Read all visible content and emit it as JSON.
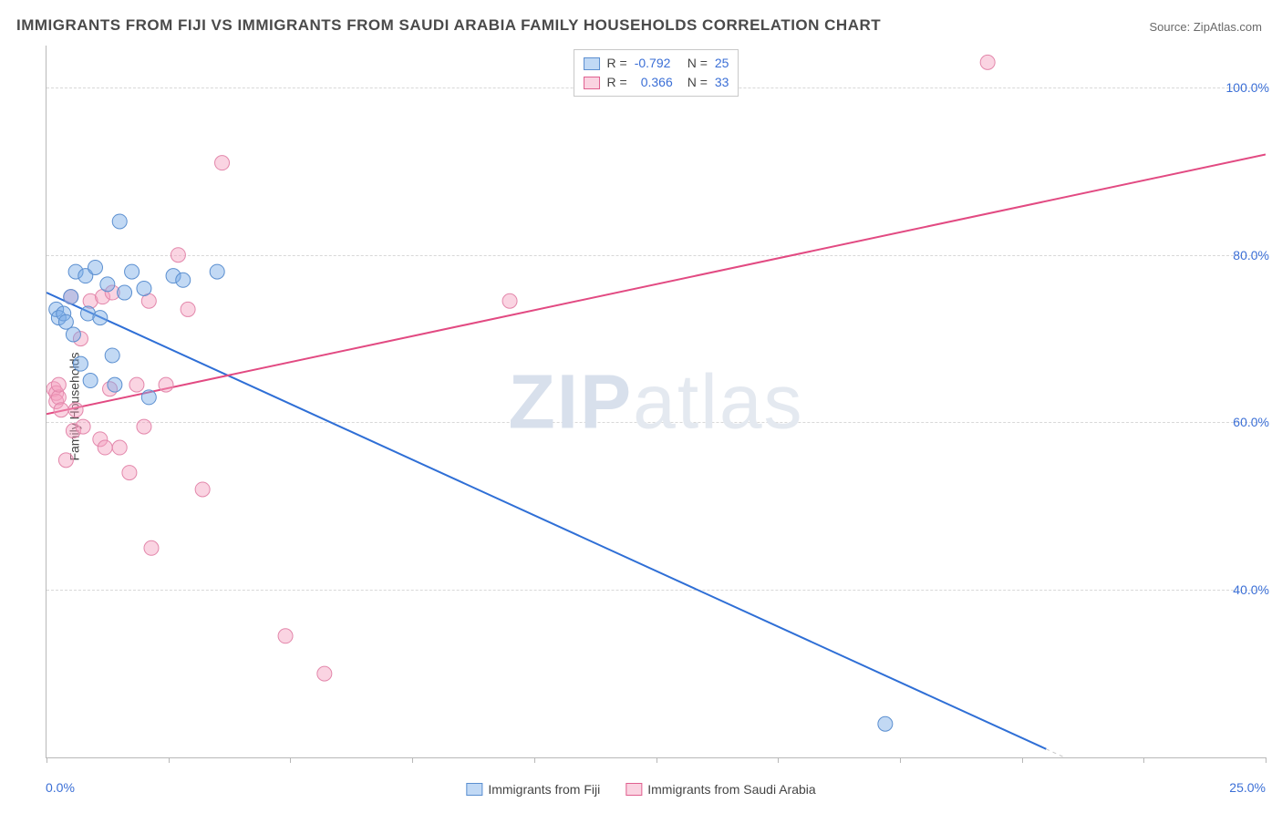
{
  "title": "IMMIGRANTS FROM FIJI VS IMMIGRANTS FROM SAUDI ARABIA FAMILY HOUSEHOLDS CORRELATION CHART",
  "source_label": "Source: ",
  "source_value": "ZipAtlas.com",
  "ylabel": "Family Households",
  "watermark_bold": "ZIP",
  "watermark_rest": "atlas",
  "colors": {
    "blue_line": "#2f6fd6",
    "pink_line": "#e24a82",
    "blue_fill": "rgba(120,170,230,0.45)",
    "blue_stroke": "#5b8fd0",
    "pink_fill": "rgba(245,160,190,0.45)",
    "pink_stroke": "#e387ab",
    "axis_text": "#3b6fd6",
    "grid": "#d8d8d8"
  },
  "legend_top": {
    "series": [
      {
        "swatch": "blue",
        "r_label": "R =",
        "r_value": "-0.792",
        "n_label": "N =",
        "n_value": "25"
      },
      {
        "swatch": "pink",
        "r_label": "R =",
        "r_value": "0.366",
        "n_label": "N =",
        "n_value": "33"
      }
    ]
  },
  "legend_bottom": {
    "items": [
      {
        "swatch": "blue",
        "label": "Immigrants from Fiji"
      },
      {
        "swatch": "pink",
        "label": "Immigrants from Saudi Arabia"
      }
    ]
  },
  "chart": {
    "xlim": [
      0,
      25
    ],
    "ylim": [
      20,
      105
    ],
    "y_ticks": [
      40,
      60,
      80,
      100
    ],
    "y_tick_labels": [
      "40.0%",
      "60.0%",
      "80.0%",
      "100.0%"
    ],
    "x_tick_positions": [
      0,
      2.5,
      5,
      7.5,
      10,
      12.5,
      15,
      17.5,
      20,
      22.5,
      25
    ],
    "x_tick_label_first": "0.0%",
    "x_tick_label_last": "25.0%",
    "marker_radius": 8,
    "line_width": 2,
    "lines": {
      "blue": {
        "x1": 0,
        "y1": 75.5,
        "x2": 20.5,
        "y2": 21
      },
      "pink": {
        "x1": 0,
        "y1": 61,
        "x2": 25,
        "y2": 92
      }
    },
    "series_blue": [
      {
        "x": 0.2,
        "y": 73.5
      },
      {
        "x": 0.25,
        "y": 72.5
      },
      {
        "x": 0.35,
        "y": 73
      },
      {
        "x": 0.4,
        "y": 72
      },
      {
        "x": 0.5,
        "y": 75
      },
      {
        "x": 0.55,
        "y": 70.5
      },
      {
        "x": 0.6,
        "y": 78
      },
      {
        "x": 0.7,
        "y": 67
      },
      {
        "x": 0.8,
        "y": 77.5
      },
      {
        "x": 0.85,
        "y": 73
      },
      {
        "x": 0.9,
        "y": 65
      },
      {
        "x": 1.0,
        "y": 78.5
      },
      {
        "x": 1.1,
        "y": 72.5
      },
      {
        "x": 1.25,
        "y": 76.5
      },
      {
        "x": 1.35,
        "y": 68
      },
      {
        "x": 1.4,
        "y": 64.5
      },
      {
        "x": 1.5,
        "y": 84
      },
      {
        "x": 1.6,
        "y": 75.5
      },
      {
        "x": 1.75,
        "y": 78
      },
      {
        "x": 2.0,
        "y": 76
      },
      {
        "x": 2.1,
        "y": 63
      },
      {
        "x": 2.6,
        "y": 77.5
      },
      {
        "x": 2.8,
        "y": 77
      },
      {
        "x": 3.5,
        "y": 78
      },
      {
        "x": 17.2,
        "y": 24
      }
    ],
    "series_pink": [
      {
        "x": 0.15,
        "y": 64
      },
      {
        "x": 0.2,
        "y": 63.5
      },
      {
        "x": 0.2,
        "y": 62.5
      },
      {
        "x": 0.25,
        "y": 63
      },
      {
        "x": 0.25,
        "y": 64.5
      },
      {
        "x": 0.3,
        "y": 61.5
      },
      {
        "x": 0.4,
        "y": 55.5
      },
      {
        "x": 0.5,
        "y": 75
      },
      {
        "x": 0.55,
        "y": 59
      },
      {
        "x": 0.6,
        "y": 61.5
      },
      {
        "x": 0.7,
        "y": 70
      },
      {
        "x": 0.75,
        "y": 59.5
      },
      {
        "x": 0.9,
        "y": 74.5
      },
      {
        "x": 1.1,
        "y": 58
      },
      {
        "x": 1.15,
        "y": 75
      },
      {
        "x": 1.2,
        "y": 57
      },
      {
        "x": 1.3,
        "y": 64
      },
      {
        "x": 1.35,
        "y": 75.5
      },
      {
        "x": 1.5,
        "y": 57
      },
      {
        "x": 1.7,
        "y": 54
      },
      {
        "x": 1.85,
        "y": 64.5
      },
      {
        "x": 2.0,
        "y": 59.5
      },
      {
        "x": 2.1,
        "y": 74.5
      },
      {
        "x": 2.15,
        "y": 45
      },
      {
        "x": 2.45,
        "y": 64.5
      },
      {
        "x": 2.7,
        "y": 80
      },
      {
        "x": 2.9,
        "y": 73.5
      },
      {
        "x": 3.2,
        "y": 52
      },
      {
        "x": 3.6,
        "y": 91
      },
      {
        "x": 4.9,
        "y": 34.5
      },
      {
        "x": 5.7,
        "y": 30
      },
      {
        "x": 9.5,
        "y": 74.5
      },
      {
        "x": 19.3,
        "y": 103
      }
    ]
  }
}
